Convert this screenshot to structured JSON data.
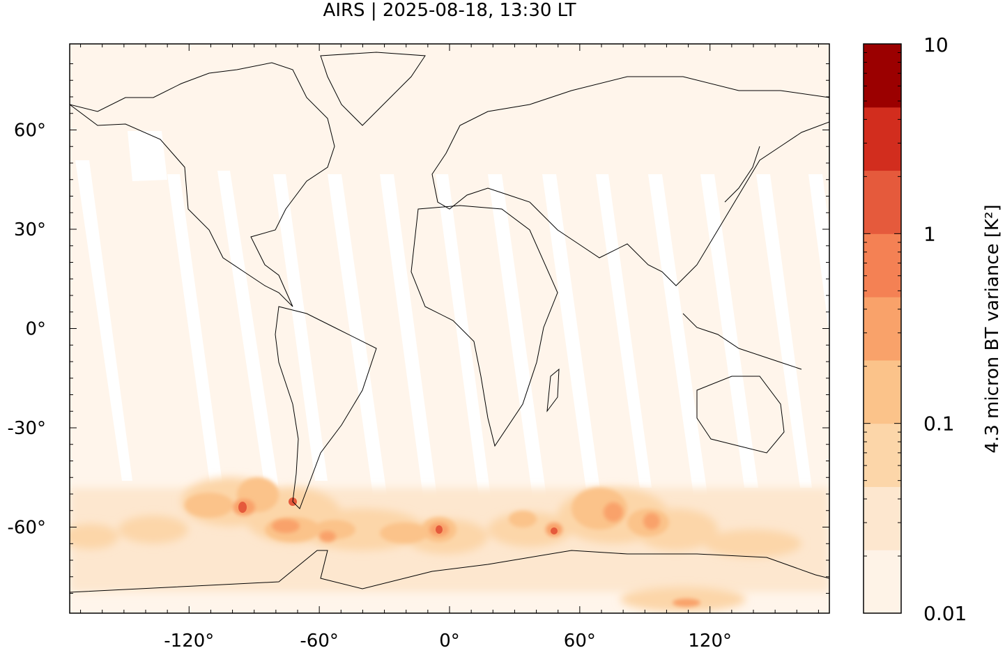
{
  "title": "AIRS | 2025-08-18, 13:30 LT",
  "map": {
    "projection": "equirectangular",
    "lon_range": [
      -175,
      175
    ],
    "lat_range": [
      -86,
      86
    ],
    "x_ticks": [
      {
        "value": -120,
        "label": "-120°"
      },
      {
        "value": -60,
        "label": "-60°"
      },
      {
        "value": 0,
        "label": "0°"
      },
      {
        "value": 60,
        "label": "60°"
      },
      {
        "value": 120,
        "label": "120°"
      }
    ],
    "y_ticks": [
      {
        "value": 60,
        "label": "60°"
      },
      {
        "value": 30,
        "label": "30°"
      },
      {
        "value": 0,
        "label": "0°"
      },
      {
        "value": -30,
        "label": "-30°"
      },
      {
        "value": -60,
        "label": "-60°"
      }
    ],
    "background_color": "#fff5eb",
    "coastline_color": "#000000"
  },
  "colorbar": {
    "label": "4.3 micron BT variance [K²]",
    "scale": "log",
    "range": [
      0.01,
      10
    ],
    "tick_labels": [
      {
        "value": 10,
        "label": "10"
      },
      {
        "value": 1,
        "label": "1"
      },
      {
        "value": 0.1,
        "label": "0.1"
      },
      {
        "value": 0.01,
        "label": "0.01"
      }
    ],
    "colors": [
      "#fff5eb",
      "#fee6ce",
      "#fdd0a2",
      "#fdae6b",
      "#fd8d3c",
      "#f16913",
      "#e6550d",
      "#d94801",
      "#a63603",
      "#7f2704"
    ],
    "bands": [
      "#fef3e7",
      "#fde7cf",
      "#fcd6a9",
      "#fbc38a",
      "#f9a26a",
      "#f48154",
      "#e55a3c",
      "#d22d1e",
      "#9b0000"
    ]
  }
}
